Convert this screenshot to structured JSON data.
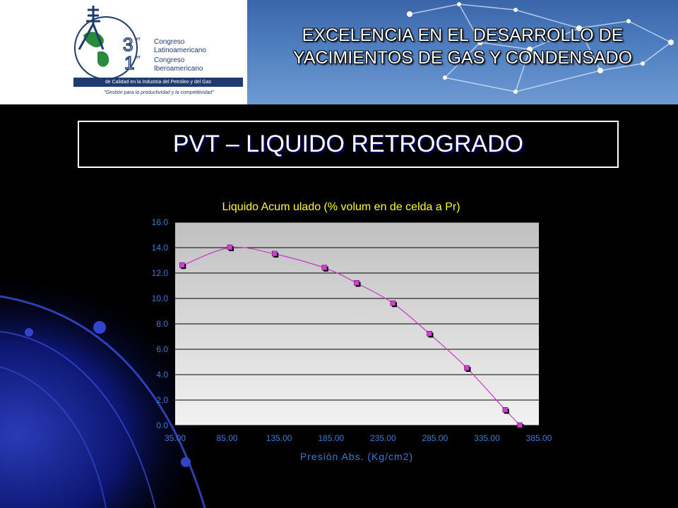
{
  "header": {
    "banner_title_line1": "EXCELENCIA EN EL DESARROLLO DE",
    "banner_title_line2": "YACIMIENTOS DE GAS Y CONDENSADO",
    "logo": {
      "line1a": "Congreso",
      "line1b": "Latinoamericano",
      "line2a": "Congreso",
      "line2b": "Iberoamericano",
      "bar": "de Calidad en la Industria del Petróleo y del Gas",
      "slogan": "\"Gestión para la productividad y la competitividad\"",
      "num1": "3",
      "num2": "1",
      "sup": "er"
    }
  },
  "slide": {
    "title": "PVT – LIQUIDO RETROGRADO"
  },
  "colors": {
    "plot_bg_top": "#c0c0c0",
    "plot_bg_bottom": "#f2f2f2",
    "curve": "#cc33cc",
    "marker": "#cc44cc",
    "axis_text": "#3b7bd1",
    "chart_title": "#ffff33",
    "background": "#000000"
  },
  "chart_data": {
    "type": "scatter",
    "title": "Liquido Acum ulado (% volum en de celda a Pr)",
    "xlabel": "Presión Abs. (Kg/cm2)",
    "ylabel": "",
    "xlim": [
      35,
      385
    ],
    "ylim": [
      0,
      16
    ],
    "x_ticks": [
      "35.00",
      "85.00",
      "135.00",
      "185.00",
      "235.00",
      "285.00",
      "335.00",
      "385.00"
    ],
    "y_ticks": [
      "0.0",
      "2.0",
      "4.0",
      "6.0",
      "8.0",
      "10.0",
      "12.0",
      "14.0",
      "16.0"
    ],
    "grid": "horizontal",
    "legend": "none",
    "series": [
      {
        "x": [
          42,
          88,
          131,
          179,
          210,
          245,
          280,
          316,
          353,
          367
        ],
        "y": [
          12.6,
          14.0,
          13.5,
          12.4,
          11.2,
          9.6,
          7.2,
          4.5,
          1.2,
          0.0
        ],
        "marker": "square",
        "line": "smooth"
      }
    ]
  }
}
